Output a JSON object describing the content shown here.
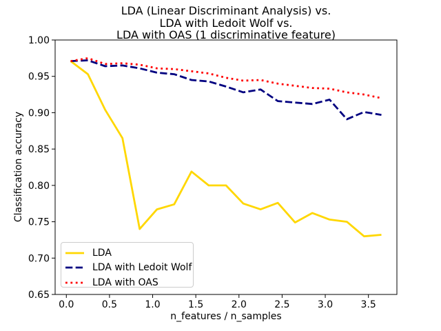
{
  "figure": {
    "title_lines": [
      "LDA (Linear Discriminant Analysis) vs.",
      "LDA with Ledoit Wolf vs.",
      "LDA with OAS (1 discriminative feature)"
    ],
    "xlabel": "n_features / n_samples",
    "ylabel": "Classification accuracy"
  },
  "chart_data": {
    "type": "line",
    "title": "LDA (Linear Discriminant Analysis) vs.\nLDA with Ledoit Wolf vs.\nLDA with OAS (1 discriminative feature)",
    "xlabel": "n_features / n_samples",
    "ylabel": "Classification accuracy",
    "xlim": [
      -0.13,
      3.83
    ],
    "ylim": [
      0.65,
      1.0
    ],
    "xticks": [
      0.0,
      0.5,
      1.0,
      1.5,
      2.0,
      2.5,
      3.0,
      3.5
    ],
    "xtick_labels": [
      "0.0",
      "0.5",
      "1.0",
      "1.5",
      "2.0",
      "2.5",
      "3.0",
      "3.5"
    ],
    "yticks": [
      0.65,
      0.7,
      0.75,
      0.8,
      0.85,
      0.9,
      0.95,
      1.0
    ],
    "ytick_labels": [
      "0.65",
      "0.70",
      "0.75",
      "0.80",
      "0.85",
      "0.90",
      "0.95",
      "1.00"
    ],
    "grid": false,
    "legend_position": "lower left",
    "axis_color": "#000000",
    "x": [
      0.05,
      0.25,
      0.45,
      0.65,
      0.85,
      1.05,
      1.25,
      1.45,
      1.65,
      1.85,
      2.05,
      2.25,
      2.45,
      2.65,
      2.85,
      3.05,
      3.25,
      3.45,
      3.65
    ],
    "series": [
      {
        "name": "LDA",
        "color": "#ffd700",
        "style": "solid",
        "values": [
          0.971,
          0.953,
          0.904,
          0.865,
          0.74,
          0.767,
          0.774,
          0.819,
          0.8,
          0.8,
          0.775,
          0.767,
          0.776,
          0.749,
          0.762,
          0.753,
          0.75,
          0.73,
          0.732
        ]
      },
      {
        "name": "LDA with Ledoit Wolf",
        "color": "#000080",
        "style": "dashed",
        "values": [
          0.971,
          0.972,
          0.964,
          0.965,
          0.961,
          0.955,
          0.953,
          0.945,
          0.943,
          0.936,
          0.928,
          0.932,
          0.916,
          0.914,
          0.912,
          0.918,
          0.891,
          0.901,
          0.897
        ]
      },
      {
        "name": "LDA with OAS",
        "color": "#ff0000",
        "style": "dotted",
        "values": [
          0.971,
          0.975,
          0.967,
          0.968,
          0.966,
          0.961,
          0.96,
          0.957,
          0.954,
          0.948,
          0.944,
          0.945,
          0.94,
          0.937,
          0.934,
          0.933,
          0.928,
          0.925,
          0.92
        ]
      }
    ]
  }
}
